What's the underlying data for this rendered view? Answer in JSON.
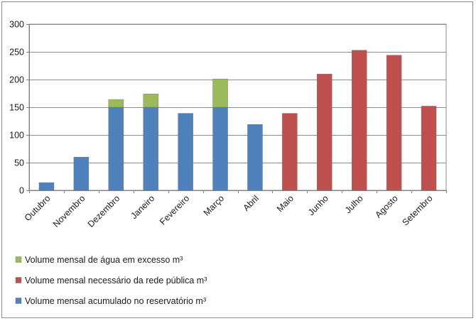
{
  "chart_data": {
    "type": "bar",
    "stacked": true,
    "categories": [
      "Outubro",
      "Novembro",
      "Dezembro",
      "Janeiro",
      "Fevereiro",
      "Março",
      "Abril",
      "Maio",
      "Junho",
      "Julho",
      "Agosto",
      "Setembro"
    ],
    "series": [
      {
        "name": "Volume mensal acumulado no reservatório m³",
        "color": "#4f81bd",
        "values": [
          14,
          60,
          150,
          150,
          139,
          150,
          119,
          0,
          0,
          0,
          0,
          0
        ]
      },
      {
        "name": "Volume mensal necessário da rede pública m³",
        "color": "#c0504d",
        "values": [
          0,
          0,
          0,
          0,
          0,
          0,
          0,
          139,
          210,
          253,
          244,
          152
        ]
      },
      {
        "name": "Volume mensal de água em excesso m³",
        "color": "#9bbb59",
        "values": [
          0,
          0,
          14,
          24,
          0,
          51,
          0,
          0,
          0,
          0,
          0,
          0
        ]
      }
    ],
    "legend_order": [
      2,
      1,
      0
    ],
    "ylim": [
      0,
      300
    ],
    "yticks": [
      0,
      50,
      100,
      150,
      200,
      250,
      300
    ],
    "grid": true,
    "legend_position": "bottom-left",
    "title": "",
    "xlabel": "",
    "ylabel": ""
  }
}
